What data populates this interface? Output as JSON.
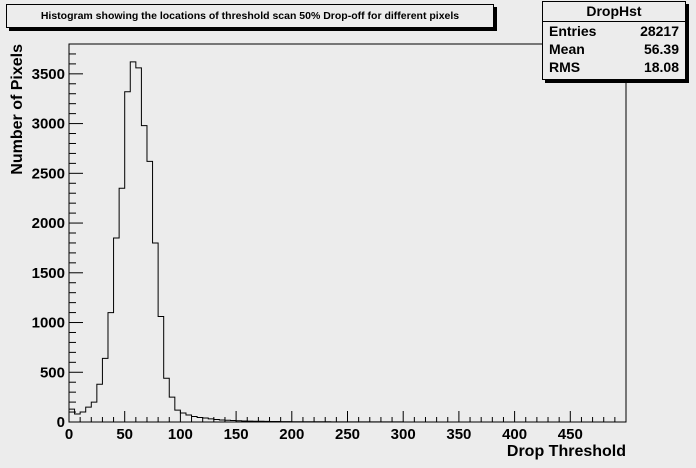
{
  "chart_data": {
    "type": "histogram",
    "title": "Histogram showing the locations of threshold scan 50% Drop-off for different pixels",
    "xlabel": "Drop Threshold",
    "ylabel": "Number of Pixels",
    "xlim": [
      0,
      500
    ],
    "ylim": [
      0,
      3800
    ],
    "x_ticks": [
      0,
      50,
      100,
      150,
      200,
      250,
      300,
      350,
      400,
      450
    ],
    "y_ticks": [
      0,
      500,
      1000,
      1500,
      2000,
      2500,
      3000,
      3500
    ],
    "bin_width": 5,
    "bin_start": 0,
    "values": [
      130,
      80,
      100,
      150,
      200,
      380,
      640,
      1100,
      1850,
      2350,
      3320,
      3620,
      3560,
      2980,
      2620,
      1800,
      1060,
      440,
      250,
      120,
      90,
      70,
      55,
      45,
      40,
      32,
      25,
      20,
      18,
      15,
      12,
      10,
      9,
      8,
      7,
      6,
      5,
      5,
      4,
      4,
      3,
      3,
      3,
      2,
      2,
      2,
      2,
      1,
      1,
      1,
      1,
      1,
      1,
      1,
      1,
      1,
      1,
      1,
      1,
      1
    ],
    "legend": "top-right"
  },
  "stats": {
    "name": "DropHst",
    "rows": [
      {
        "label": "Entries",
        "value": "28217"
      },
      {
        "label": "Mean",
        "value": "56.39"
      },
      {
        "label": "RMS",
        "value": "18.08"
      }
    ]
  }
}
